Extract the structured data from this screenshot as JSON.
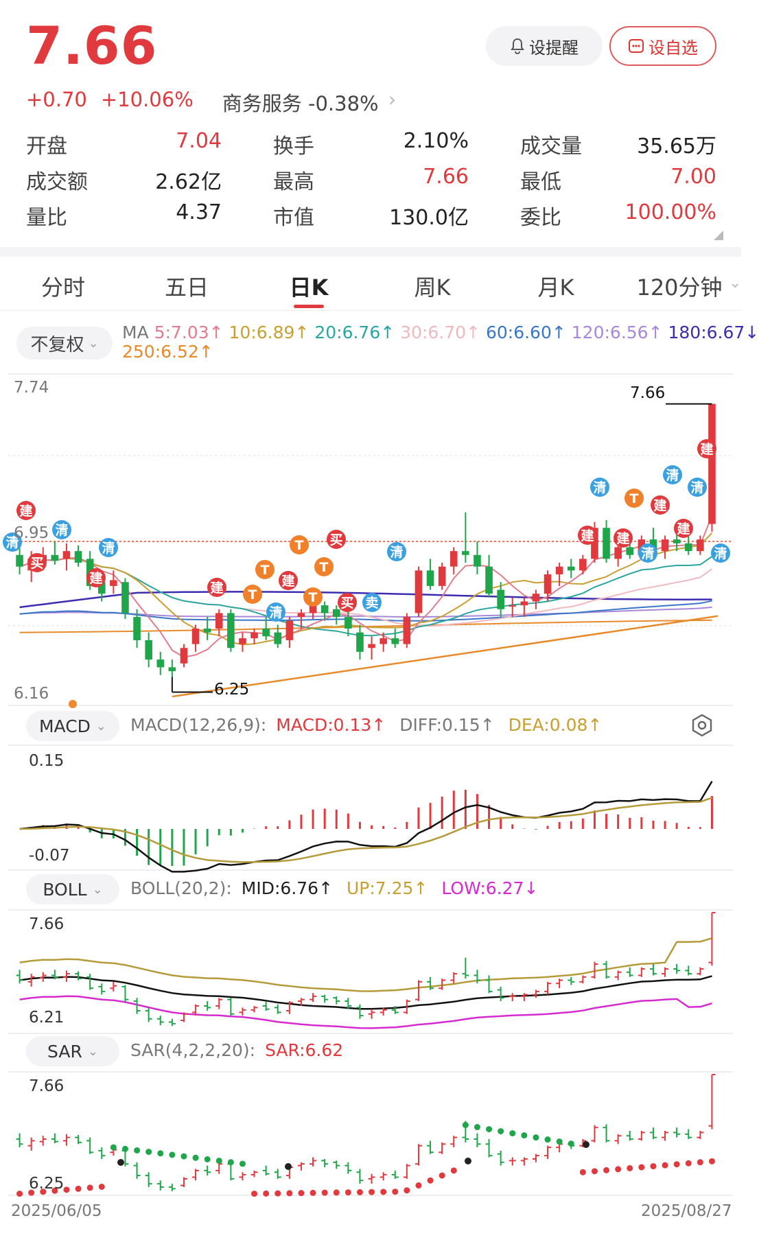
{
  "header": {
    "price": "7.66",
    "change_abs": "+0.70",
    "change_pct": "+10.06%",
    "industry": "商务服务 -0.38%",
    "alert_button": "设提醒",
    "watch_button": "设自选"
  },
  "stats": {
    "open_label": "开盘",
    "open": "7.04",
    "turnover_label": "换手",
    "turnover": "2.10%",
    "volume_label": "成交量",
    "volume": "35.65万",
    "amount_label": "成交额",
    "amount": "2.62亿",
    "high_label": "最高",
    "high": "7.66",
    "low_label": "最低",
    "low": "7.00",
    "vol_ratio_label": "量比",
    "vol_ratio": "4.37",
    "mktcap_label": "市值",
    "mktcap": "130.0亿",
    "bid_ratio_label": "委比",
    "bid_ratio": "100.00%"
  },
  "tabs": [
    "分时",
    "五日",
    "日K",
    "周K",
    "月K",
    "120分钟"
  ],
  "active_tab": "日K",
  "adjust": "不复权",
  "ma_legend": {
    "prefix": "MA",
    "ma5": "5:7.03↑",
    "ma10": "10:6.89↑",
    "ma20": "20:6.76↑",
    "ma30": "30:6.70↑",
    "ma60": "60:6.60↑",
    "ma120": "120:6.56↑",
    "ma180": "180:6.67↓",
    "ma250": "250:6.52↑"
  },
  "colors": {
    "up": "#e03a3e",
    "down": "#1fa64a",
    "ma5": "#e07c8c",
    "ma10": "#c8a031",
    "ma20": "#2aa6a0",
    "ma30": "#f0b8c0",
    "ma60": "#3a76c8",
    "ma120": "#a888d8",
    "ma180": "#3c2cb0",
    "ma250": "#e88a2a"
  },
  "kline": {
    "y_top": "7.74",
    "y_ref": "6.95",
    "y_bottom": "6.16",
    "max_label": "7.66",
    "min_label": "6.25",
    "date_start": "2025/06/05",
    "date_end": "2025/08/27"
  },
  "signals": {
    "jian": "建",
    "qing": "清",
    "mai": "买",
    "sell": "卖",
    "t": "T"
  },
  "macd": {
    "name": "MACD",
    "params": "MACD(12,26,9):",
    "macd": "MACD:0.13↑",
    "diff": "DIFF:0.15↑",
    "dea": "DEA:0.08↑",
    "y_top": "0.15",
    "y_bottom": "-0.07"
  },
  "boll": {
    "name": "BOLL",
    "params": "BOLL(20,2):",
    "mid": "MID:6.76↑",
    "up": "UP:7.25↑",
    "low": "LOW:6.27↓",
    "y_top": "7.66",
    "y_bottom": "6.21"
  },
  "sar": {
    "name": "SAR",
    "params": "SAR(4,2,2,20):",
    "value": "SAR:6.62",
    "y_top": "7.66",
    "y_bottom": "6.25"
  },
  "chart_data": {
    "type": "candlestick",
    "x": [
      "2025/06/05",
      "2025/08/27"
    ],
    "ohlc": [
      [
        6.88,
        6.95,
        6.78,
        6.82
      ],
      [
        6.8,
        6.9,
        6.74,
        6.86
      ],
      [
        6.85,
        6.92,
        6.8,
        6.88
      ],
      [
        6.88,
        6.95,
        6.83,
        6.85
      ],
      [
        6.86,
        6.94,
        6.8,
        6.9
      ],
      [
        6.9,
        6.93,
        6.82,
        6.84
      ],
      [
        6.86,
        6.9,
        6.7,
        6.72
      ],
      [
        6.74,
        6.78,
        6.64,
        6.68
      ],
      [
        6.72,
        6.8,
        6.68,
        6.75
      ],
      [
        6.74,
        6.76,
        6.55,
        6.58
      ],
      [
        6.56,
        6.6,
        6.4,
        6.44
      ],
      [
        6.44,
        6.48,
        6.3,
        6.34
      ],
      [
        6.34,
        6.38,
        6.26,
        6.3
      ],
      [
        6.3,
        6.34,
        6.25,
        6.28
      ],
      [
        6.32,
        6.42,
        6.3,
        6.4
      ],
      [
        6.42,
        6.52,
        6.38,
        6.5
      ],
      [
        6.5,
        6.56,
        6.44,
        6.48
      ],
      [
        6.5,
        6.6,
        6.46,
        6.58
      ],
      [
        6.58,
        6.6,
        6.38,
        6.4
      ],
      [
        6.42,
        6.48,
        6.38,
        6.45
      ],
      [
        6.45,
        6.5,
        6.42,
        6.48
      ],
      [
        6.5,
        6.56,
        6.44,
        6.46
      ],
      [
        6.48,
        6.52,
        6.4,
        6.42
      ],
      [
        6.44,
        6.56,
        6.4,
        6.54
      ],
      [
        6.56,
        6.6,
        6.5,
        6.58
      ],
      [
        6.58,
        6.66,
        6.55,
        6.62
      ],
      [
        6.62,
        6.64,
        6.54,
        6.58
      ],
      [
        6.6,
        6.62,
        6.52,
        6.56
      ],
      [
        6.56,
        6.6,
        6.46,
        6.5
      ],
      [
        6.48,
        6.52,
        6.34,
        6.38
      ],
      [
        6.4,
        6.46,
        6.34,
        6.42
      ],
      [
        6.42,
        6.48,
        6.38,
        6.45
      ],
      [
        6.45,
        6.5,
        6.4,
        6.42
      ],
      [
        6.42,
        6.58,
        6.4,
        6.56
      ],
      [
        6.58,
        6.82,
        6.56,
        6.8
      ],
      [
        6.8,
        6.86,
        6.7,
        6.72
      ],
      [
        6.72,
        6.84,
        6.7,
        6.82
      ],
      [
        6.82,
        6.92,
        6.78,
        6.9
      ],
      [
        6.9,
        7.1,
        6.84,
        6.88
      ],
      [
        6.88,
        6.95,
        6.78,
        6.82
      ],
      [
        6.82,
        6.88,
        6.66,
        6.68
      ],
      [
        6.7,
        6.74,
        6.56,
        6.6
      ],
      [
        6.62,
        6.66,
        6.56,
        6.62
      ],
      [
        6.62,
        6.66,
        6.56,
        6.64
      ],
      [
        6.64,
        6.7,
        6.6,
        6.68
      ],
      [
        6.68,
        6.8,
        6.64,
        6.78
      ],
      [
        6.78,
        6.84,
        6.72,
        6.82
      ],
      [
        6.82,
        6.86,
        6.76,
        6.8
      ],
      [
        6.8,
        6.88,
        6.78,
        6.86
      ],
      [
        6.86,
        7.05,
        6.84,
        7.02
      ],
      [
        7.02,
        7.06,
        6.84,
        6.86
      ],
      [
        6.86,
        6.94,
        6.82,
        6.92
      ],
      [
        6.92,
        6.98,
        6.86,
        6.88
      ],
      [
        6.88,
        6.98,
        6.86,
        6.96
      ],
      [
        6.96,
        7.02,
        6.88,
        6.9
      ],
      [
        6.9,
        6.98,
        6.86,
        6.96
      ],
      [
        6.96,
        7.02,
        6.9,
        6.94
      ],
      [
        6.94,
        7.0,
        6.88,
        6.9
      ],
      [
        6.9,
        6.98,
        6.88,
        6.96
      ],
      [
        7.04,
        7.66,
        7.0,
        7.66
      ]
    ]
  }
}
